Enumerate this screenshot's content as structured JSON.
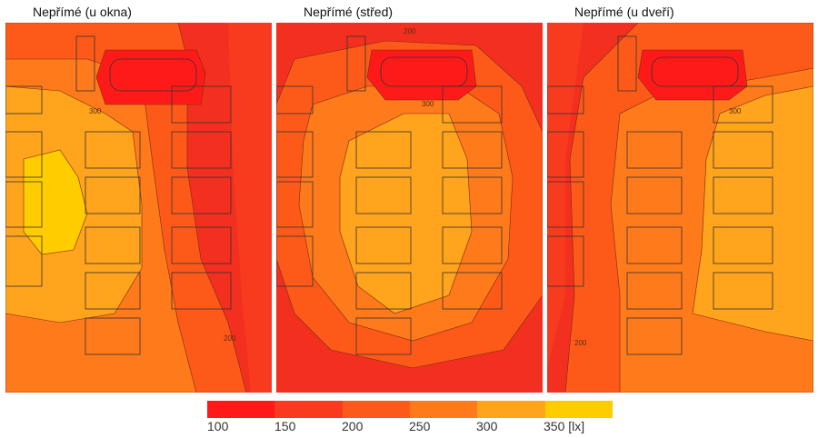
{
  "panels": [
    {
      "title": "Nepřímé (u okna)",
      "brightSide": "left"
    },
    {
      "title": "Nepřímé (střed)",
      "brightSide": "center"
    },
    {
      "title": "Nepřímé (u dveří)",
      "brightSide": "right"
    }
  ],
  "contour_labels": [
    "300",
    "250",
    "200"
  ],
  "legend": {
    "levels": [
      {
        "label": "100",
        "color": "#ff1a1a"
      },
      {
        "label": "150",
        "color": "#f83b1e"
      },
      {
        "label": "200",
        "color": "#fd5a1a"
      },
      {
        "label": "250",
        "color": "#ff7a1a"
      },
      {
        "label": "300",
        "color": "#ffa41c"
      },
      {
        "label": "350 [lx]",
        "color": "#ffcc00"
      }
    ]
  }
}
